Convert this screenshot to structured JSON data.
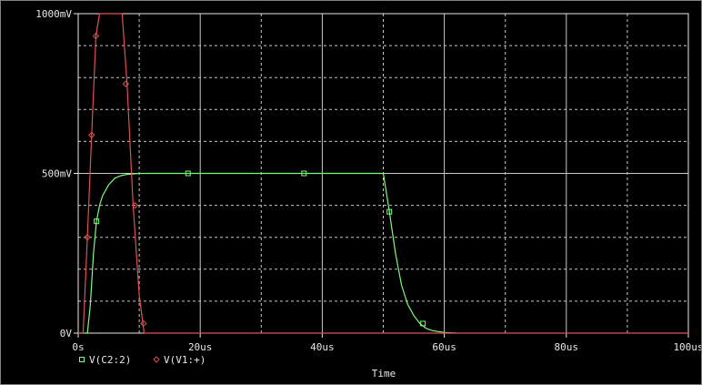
{
  "chart_data": {
    "type": "line",
    "xlabel": "Time",
    "ylabel": "",
    "xlim": [
      0,
      100
    ],
    "ylim": [
      0,
      1000
    ],
    "x_unit": "us",
    "y_unit": "mV",
    "x_ticks": [
      "0s",
      "20us",
      "40us",
      "60us",
      "80us",
      "100us"
    ],
    "y_ticks": [
      "0V",
      "500mV",
      "1000mV"
    ],
    "grid": true,
    "legend_position": "bottom-left",
    "series": [
      {
        "name": "V(C2:2)",
        "color": "#7cfc7c",
        "marker": "square",
        "x": [
          0,
          1.5,
          2,
          2.5,
          3,
          3.5,
          4,
          5,
          6,
          7,
          8,
          10,
          18,
          30,
          37,
          50,
          50.5,
          51,
          52,
          53,
          54,
          55,
          56,
          57,
          58,
          60,
          62
        ],
        "y": [
          0,
          0,
          90,
          250,
          350,
          400,
          430,
          465,
          485,
          493,
          497,
          500,
          500,
          500,
          500,
          500,
          440,
          380,
          250,
          150,
          90,
          55,
          30,
          15,
          8,
          2,
          0
        ],
        "markers": [
          [
            3,
            350
          ],
          [
            18,
            500
          ],
          [
            37,
            500
          ],
          [
            51,
            380
          ],
          [
            56.5,
            30
          ]
        ]
      },
      {
        "name": "V(V1:+)",
        "color": "#e05050",
        "marker": "diamond",
        "x": [
          0,
          0.8,
          1.5,
          2.2,
          2.9,
          3.5,
          4,
          5,
          5.8,
          6.5,
          7.2,
          8,
          9,
          10,
          10.8,
          12,
          100
        ],
        "y": [
          0,
          0,
          300,
          620,
          930,
          1000,
          1000,
          1000,
          1000,
          1000,
          1000,
          780,
          400,
          120,
          0,
          0,
          0
        ],
        "markers": [
          [
            1.5,
            300
          ],
          [
            2.2,
            620
          ],
          [
            2.9,
            930
          ],
          [
            7.8,
            780
          ],
          [
            9.3,
            400
          ],
          [
            10.7,
            30
          ]
        ]
      }
    ]
  }
}
